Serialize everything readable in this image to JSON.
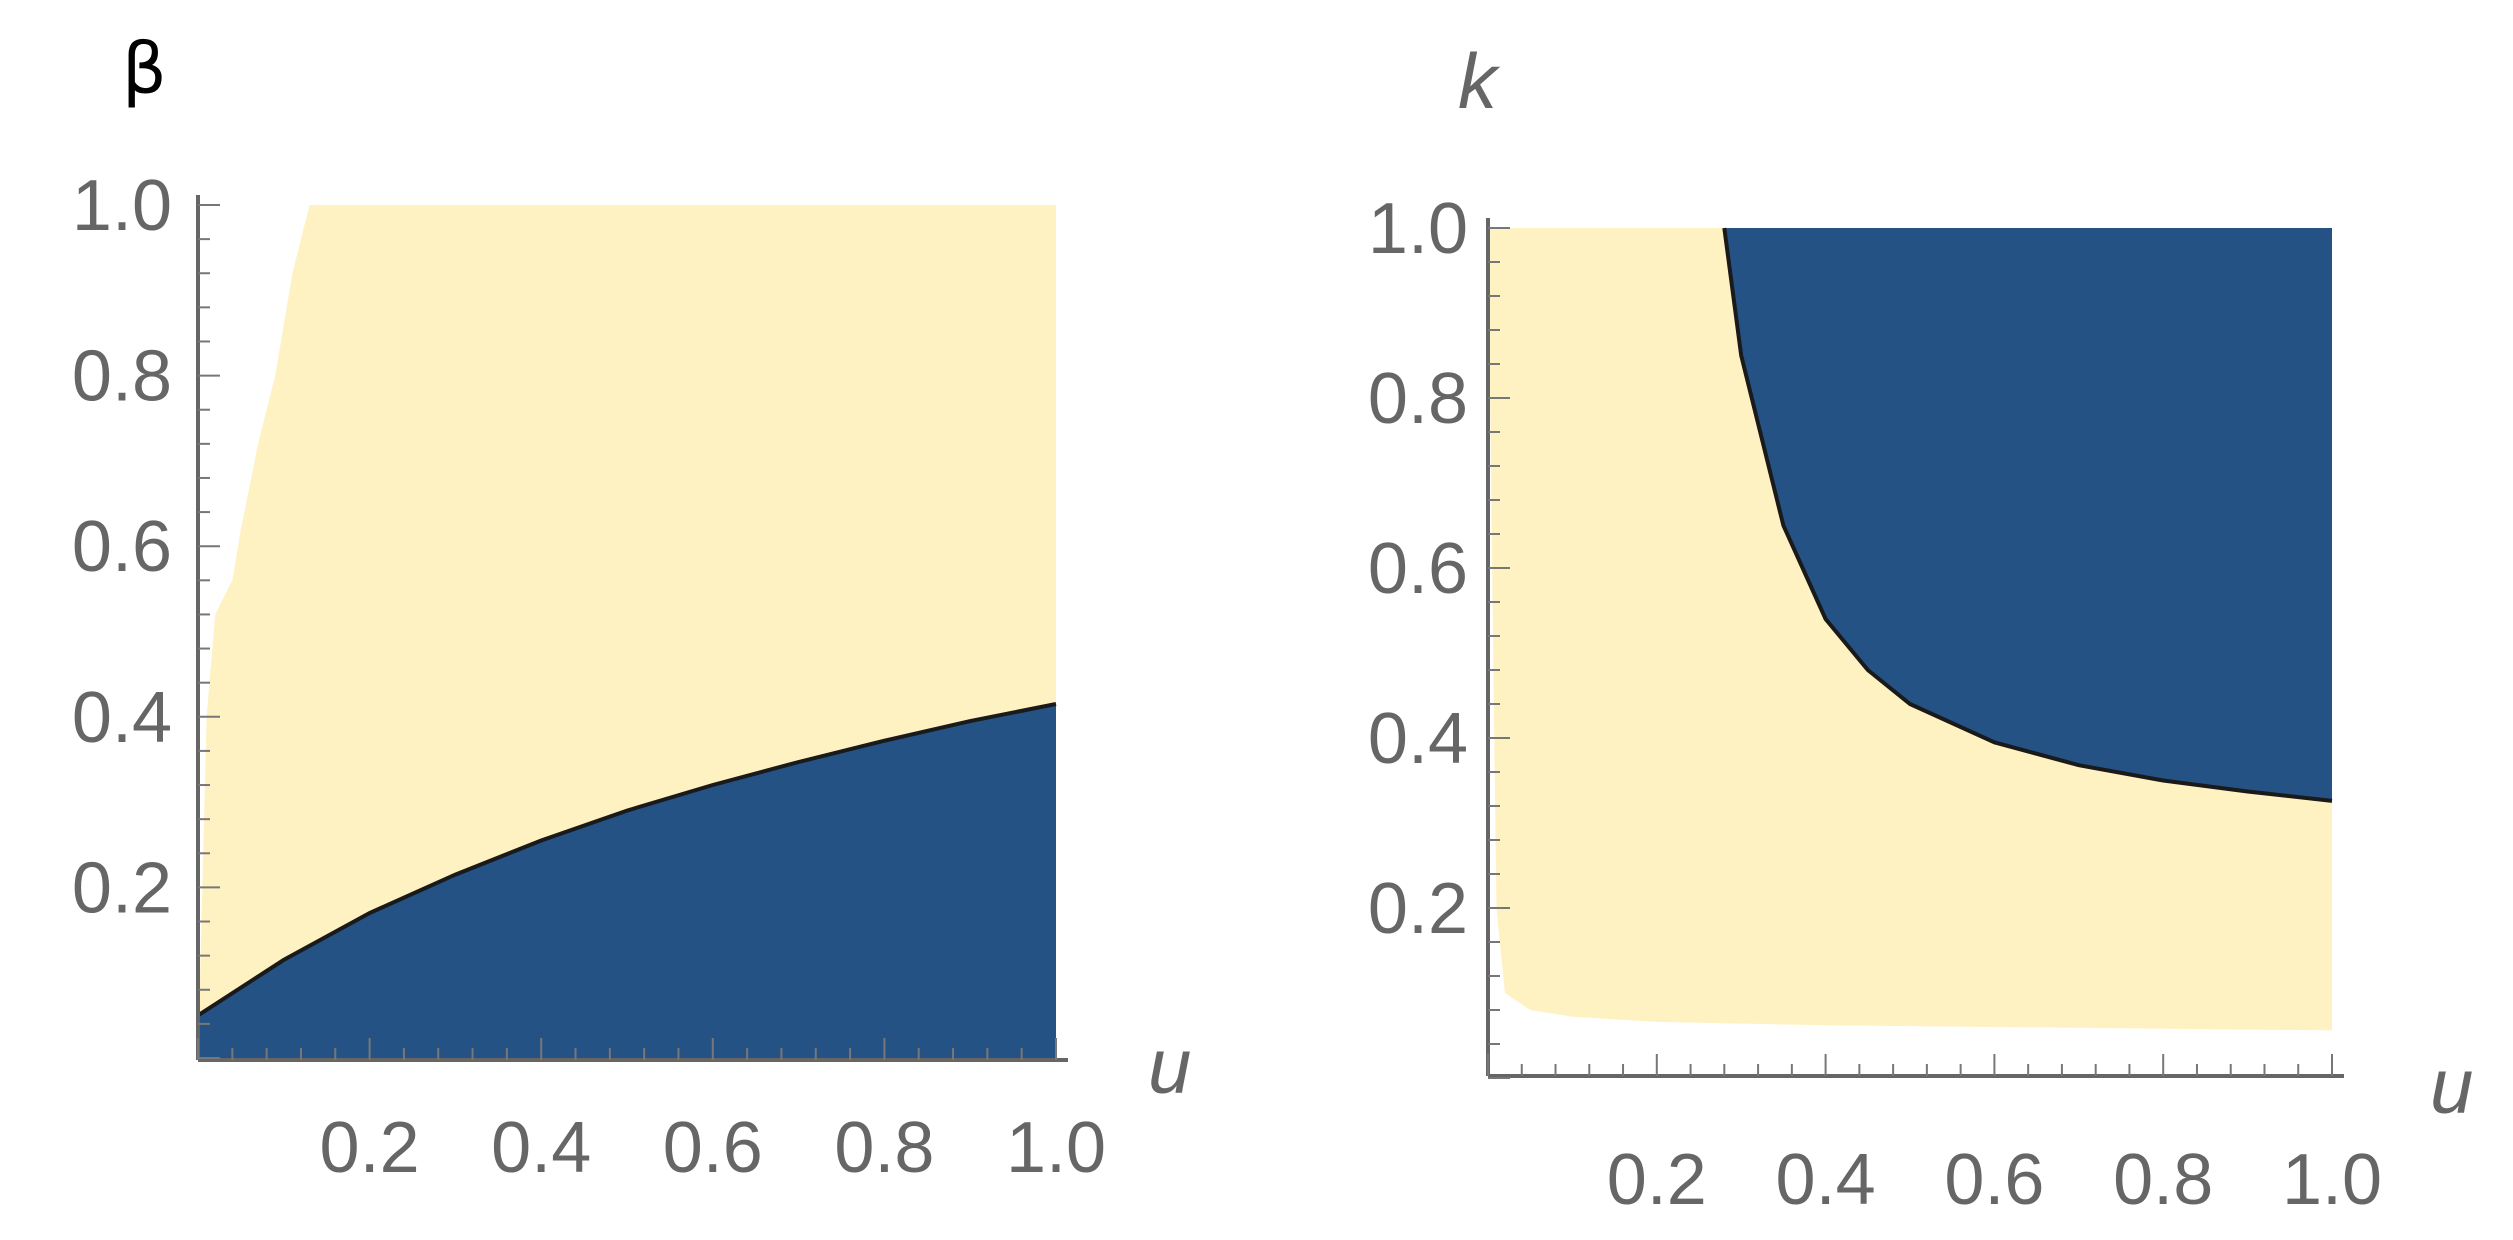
{
  "chart_data": [
    {
      "type": "area",
      "panel": "left",
      "ylabel": "β",
      "xlabel": "u",
      "xlim": [
        0,
        1.0
      ],
      "ylim": [
        0,
        1.0
      ],
      "x_ticks": [
        "0.2",
        "0.4",
        "0.6",
        "0.8",
        "1.0"
      ],
      "y_ticks": [
        "0.2",
        "0.4",
        "0.6",
        "0.8",
        "1.0"
      ],
      "grid": false,
      "colors": {
        "light_region": "#FFF2C2",
        "dark_region": "#245285",
        "boundary": "#1a1a1a"
      },
      "light_region_left_edge": [
        {
          "y": 0.0,
          "x": 0.0
        },
        {
          "y": 0.4,
          "x": 0.01
        },
        {
          "y": 0.52,
          "x": 0.02
        },
        {
          "y": 0.56,
          "x": 0.04
        },
        {
          "y": 0.62,
          "x": 0.05
        },
        {
          "y": 0.72,
          "x": 0.07
        },
        {
          "y": 0.8,
          "x": 0.09
        },
        {
          "y": 0.92,
          "x": 0.11
        },
        {
          "y": 1.0,
          "x": 0.13
        }
      ],
      "dark_region_upper_boundary": {
        "x": [
          0.0,
          0.1,
          0.2,
          0.3,
          0.4,
          0.5,
          0.6,
          0.7,
          0.8,
          0.9,
          1.0
        ],
        "y": [
          0.05,
          0.115,
          0.17,
          0.215,
          0.255,
          0.29,
          0.32,
          0.347,
          0.372,
          0.395,
          0.415
        ]
      }
    },
    {
      "type": "area",
      "panel": "right",
      "ylabel": "k",
      "xlabel": "u",
      "xlim": [
        0,
        1.0
      ],
      "ylim": [
        0,
        1.0
      ],
      "x_ticks": [
        "0.2",
        "0.4",
        "0.6",
        "0.8",
        "1.0"
      ],
      "y_ticks": [
        "0.2",
        "0.4",
        "0.6",
        "0.8",
        "1.0"
      ],
      "grid": false,
      "colors": {
        "light_region": "#FFF2C2",
        "dark_region": "#245285",
        "boundary": "#1a1a1a"
      },
      "light_region_lower_edge": {
        "x": [
          0.0,
          0.01,
          0.02,
          0.05,
          0.1,
          0.2,
          0.4,
          0.6,
          0.8,
          1.0
        ],
        "y": [
          1.0,
          0.2,
          0.1,
          0.08,
          0.072,
          0.066,
          0.062,
          0.06,
          0.058,
          0.056
        ]
      },
      "dark_region_lower_boundary": {
        "x": [
          0.28,
          0.3,
          0.35,
          0.4,
          0.45,
          0.5,
          0.6,
          0.7,
          0.8,
          0.9,
          1.0
        ],
        "y": [
          1.0,
          0.85,
          0.65,
          0.54,
          0.48,
          0.44,
          0.395,
          0.368,
          0.35,
          0.337,
          0.326
        ]
      }
    }
  ]
}
